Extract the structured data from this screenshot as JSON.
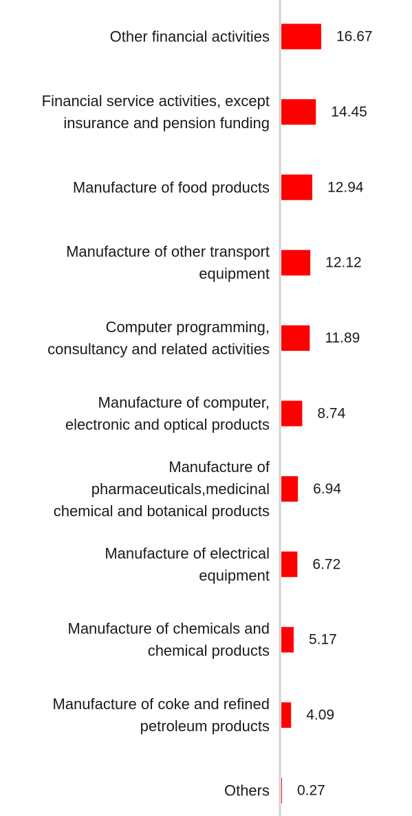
{
  "chart_data": {
    "type": "bar",
    "orientation": "horizontal",
    "categories": [
      [
        "Other financial activities"
      ],
      [
        "Financial service activities, except",
        "insurance and pension funding"
      ],
      [
        "Manufacture of food products"
      ],
      [
        "Manufacture of other transport",
        "equipment"
      ],
      [
        "Computer programming,",
        "consultancy and related activities"
      ],
      [
        "Manufacture of computer,",
        "electronic and optical products"
      ],
      [
        "Manufacture of",
        "pharmaceuticals,medicinal",
        "chemical and botanical products"
      ],
      [
        "Manufacture of electrical",
        "equipment"
      ],
      [
        "Manufacture of chemicals and",
        "chemical products"
      ],
      [
        "Manufacture of coke and refined",
        "petroleum products"
      ],
      [
        "Others"
      ]
    ],
    "values": [
      16.67,
      14.45,
      12.94,
      12.12,
      11.89,
      8.74,
      6.94,
      6.72,
      5.17,
      4.09,
      0.27
    ],
    "value_labels": [
      "16.67",
      "14.45",
      "12.94",
      "12.12",
      "11.89",
      "8.74",
      "6.94",
      "6.72",
      "5.17",
      "4.09",
      "0.27"
    ],
    "bar_color": "#ff0000",
    "axis_color": "#d0d0d0",
    "grid": false,
    "legend": "none"
  }
}
